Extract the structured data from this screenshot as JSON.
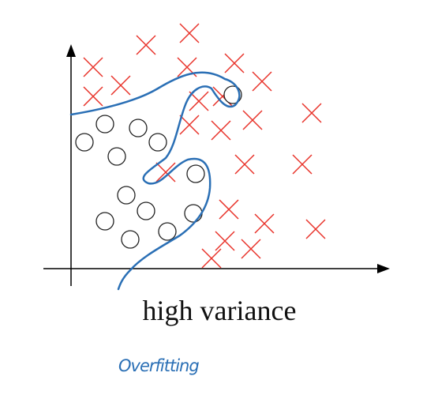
{
  "caption": "high variance",
  "note": "Overfitting"
}
